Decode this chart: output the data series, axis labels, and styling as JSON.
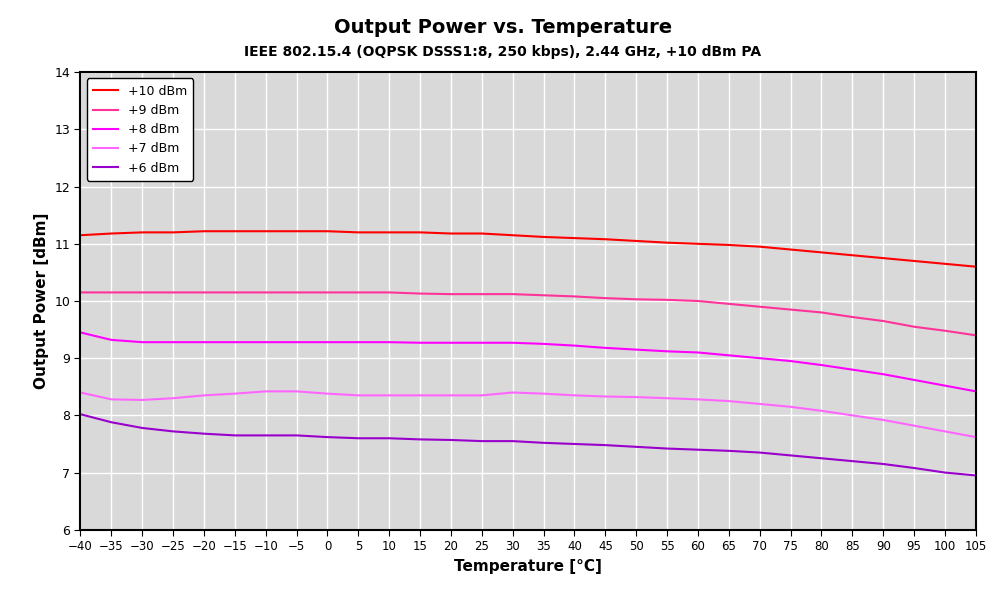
{
  "title": "Output Power vs. Temperature",
  "subtitle": "IEEE 802.15.4 (OQPSK DSSS1:8, 250 kbps), 2.44 GHz, +10 dBm PA",
  "xlabel": "Temperature [°C]",
  "ylabel": "Output Power [dBm]",
  "xlim": [
    -40,
    105
  ],
  "ylim": [
    6,
    14
  ],
  "xticks": [
    -40,
    -35,
    -30,
    -25,
    -20,
    -15,
    -10,
    -5,
    0,
    5,
    10,
    15,
    20,
    25,
    30,
    35,
    40,
    45,
    50,
    55,
    60,
    65,
    70,
    75,
    80,
    85,
    90,
    95,
    100,
    105
  ],
  "yticks": [
    6,
    7,
    8,
    9,
    10,
    11,
    12,
    13,
    14
  ],
  "background_color": "#d9d9d9",
  "grid_color": "#ffffff",
  "series": [
    {
      "label": "+10 dBm",
      "color": "#ff0000",
      "data_x": [
        -40,
        -35,
        -30,
        -25,
        -20,
        -15,
        -10,
        -5,
        0,
        5,
        10,
        15,
        20,
        25,
        30,
        35,
        40,
        45,
        50,
        55,
        60,
        65,
        70,
        75,
        80,
        85,
        90,
        95,
        100,
        105
      ],
      "data_y": [
        11.15,
        11.18,
        11.2,
        11.2,
        11.22,
        11.22,
        11.22,
        11.22,
        11.22,
        11.2,
        11.2,
        11.2,
        11.18,
        11.18,
        11.15,
        11.12,
        11.1,
        11.08,
        11.05,
        11.02,
        11.0,
        10.98,
        10.95,
        10.9,
        10.85,
        10.8,
        10.75,
        10.7,
        10.65,
        10.6
      ]
    },
    {
      "label": "+9 dBm",
      "color": "#ff3399",
      "data_x": [
        -40,
        -35,
        -30,
        -25,
        -20,
        -15,
        -10,
        -5,
        0,
        5,
        10,
        15,
        20,
        25,
        30,
        35,
        40,
        45,
        50,
        55,
        60,
        65,
        70,
        75,
        80,
        85,
        90,
        95,
        100,
        105
      ],
      "data_y": [
        10.15,
        10.15,
        10.15,
        10.15,
        10.15,
        10.15,
        10.15,
        10.15,
        10.15,
        10.15,
        10.15,
        10.13,
        10.12,
        10.12,
        10.12,
        10.1,
        10.08,
        10.05,
        10.03,
        10.02,
        10.0,
        9.95,
        9.9,
        9.85,
        9.8,
        9.72,
        9.65,
        9.55,
        9.48,
        9.4
      ]
    },
    {
      "label": "+8 dBm",
      "color": "#ff00ff",
      "data_x": [
        -40,
        -35,
        -30,
        -25,
        -20,
        -15,
        -10,
        -5,
        0,
        5,
        10,
        15,
        20,
        25,
        30,
        35,
        40,
        45,
        50,
        55,
        60,
        65,
        70,
        75,
        80,
        85,
        90,
        95,
        100,
        105
      ],
      "data_y": [
        9.45,
        9.32,
        9.28,
        9.28,
        9.28,
        9.28,
        9.28,
        9.28,
        9.28,
        9.28,
        9.28,
        9.27,
        9.27,
        9.27,
        9.27,
        9.25,
        9.22,
        9.18,
        9.15,
        9.12,
        9.1,
        9.05,
        9.0,
        8.95,
        8.88,
        8.8,
        8.72,
        8.62,
        8.52,
        8.42
      ]
    },
    {
      "label": "+7 dBm",
      "color": "#ff66ff",
      "data_x": [
        -40,
        -35,
        -30,
        -25,
        -20,
        -15,
        -10,
        -5,
        0,
        5,
        10,
        15,
        20,
        25,
        30,
        35,
        40,
        45,
        50,
        55,
        60,
        65,
        70,
        75,
        80,
        85,
        90,
        95,
        100,
        105
      ],
      "data_y": [
        8.4,
        8.28,
        8.27,
        8.3,
        8.35,
        8.38,
        8.42,
        8.42,
        8.38,
        8.35,
        8.35,
        8.35,
        8.35,
        8.35,
        8.4,
        8.38,
        8.35,
        8.33,
        8.32,
        8.3,
        8.28,
        8.25,
        8.2,
        8.15,
        8.08,
        8.0,
        7.92,
        7.82,
        7.72,
        7.62
      ]
    },
    {
      "label": "+6 dBm",
      "color": "#9900cc",
      "data_x": [
        -40,
        -35,
        -30,
        -25,
        -20,
        -15,
        -10,
        -5,
        0,
        5,
        10,
        15,
        20,
        25,
        30,
        35,
        40,
        45,
        50,
        55,
        60,
        65,
        70,
        75,
        80,
        85,
        90,
        95,
        100,
        105
      ],
      "data_y": [
        8.02,
        7.88,
        7.78,
        7.72,
        7.68,
        7.65,
        7.65,
        7.65,
        7.62,
        7.6,
        7.6,
        7.58,
        7.57,
        7.55,
        7.55,
        7.52,
        7.5,
        7.48,
        7.45,
        7.42,
        7.4,
        7.38,
        7.35,
        7.3,
        7.25,
        7.2,
        7.15,
        7.08,
        7.0,
        6.95
      ]
    }
  ]
}
